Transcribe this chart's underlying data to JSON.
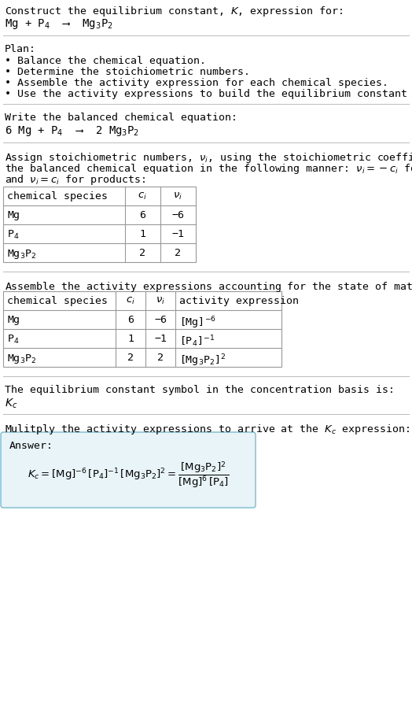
{
  "title_line1": "Construct the equilibrium constant, $K$, expression for:",
  "title_line2": "Mg + P$_4$  ⟶  Mg$_3$P$_2$",
  "plan_header": "Plan:",
  "plan_items": [
    "• Balance the chemical equation.",
    "• Determine the stoichiometric numbers.",
    "• Assemble the activity expression for each chemical species.",
    "• Use the activity expressions to build the equilibrium constant expression."
  ],
  "balanced_header": "Write the balanced chemical equation:",
  "balanced_eq": "6 Mg + P$_4$  ⟶  2 Mg$_3$P$_2$",
  "stoich_header_parts": [
    "Assign stoichiometric numbers, $\\nu_i$, using the stoichiometric coefficients, $c_i$, from",
    "the balanced chemical equation in the following manner: $\\nu_i = -c_i$ for reactants",
    "and $\\nu_i = c_i$ for products:"
  ],
  "table1_headers": [
    "chemical species",
    "$c_i$",
    "$\\nu_i$"
  ],
  "table1_rows": [
    [
      "Mg",
      "6",
      "−6"
    ],
    [
      "P$_4$",
      "1",
      "−1"
    ],
    [
      "Mg$_3$P$_2$",
      "2",
      "2"
    ]
  ],
  "assemble_header": "Assemble the activity expressions accounting for the state of matter and $\\nu_i$:",
  "table2_headers": [
    "chemical species",
    "$c_i$",
    "$\\nu_i$",
    "activity expression"
  ],
  "table2_rows": [
    [
      "Mg",
      "6",
      "−6",
      "[Mg]$^{-6}$"
    ],
    [
      "P$_4$",
      "1",
      "−1",
      "[P$_4$]$^{-1}$"
    ],
    [
      "Mg$_3$P$_2$",
      "2",
      "2",
      "[Mg$_3$P$_2$]$^2$"
    ]
  ],
  "kc_header": "The equilibrium constant symbol in the concentration basis is:",
  "kc_symbol": "$K_c$",
  "multiply_header": "Mulitply the activity expressions to arrive at the $K_c$ expression:",
  "answer_label": "Answer:",
  "bg_color": "#ffffff",
  "table_border_color": "#999999",
  "answer_box_facecolor": "#e8f4f8",
  "answer_box_edgecolor": "#7abacc",
  "divider_color": "#bbbbbb",
  "text_color": "#000000",
  "font_size": 9.5
}
